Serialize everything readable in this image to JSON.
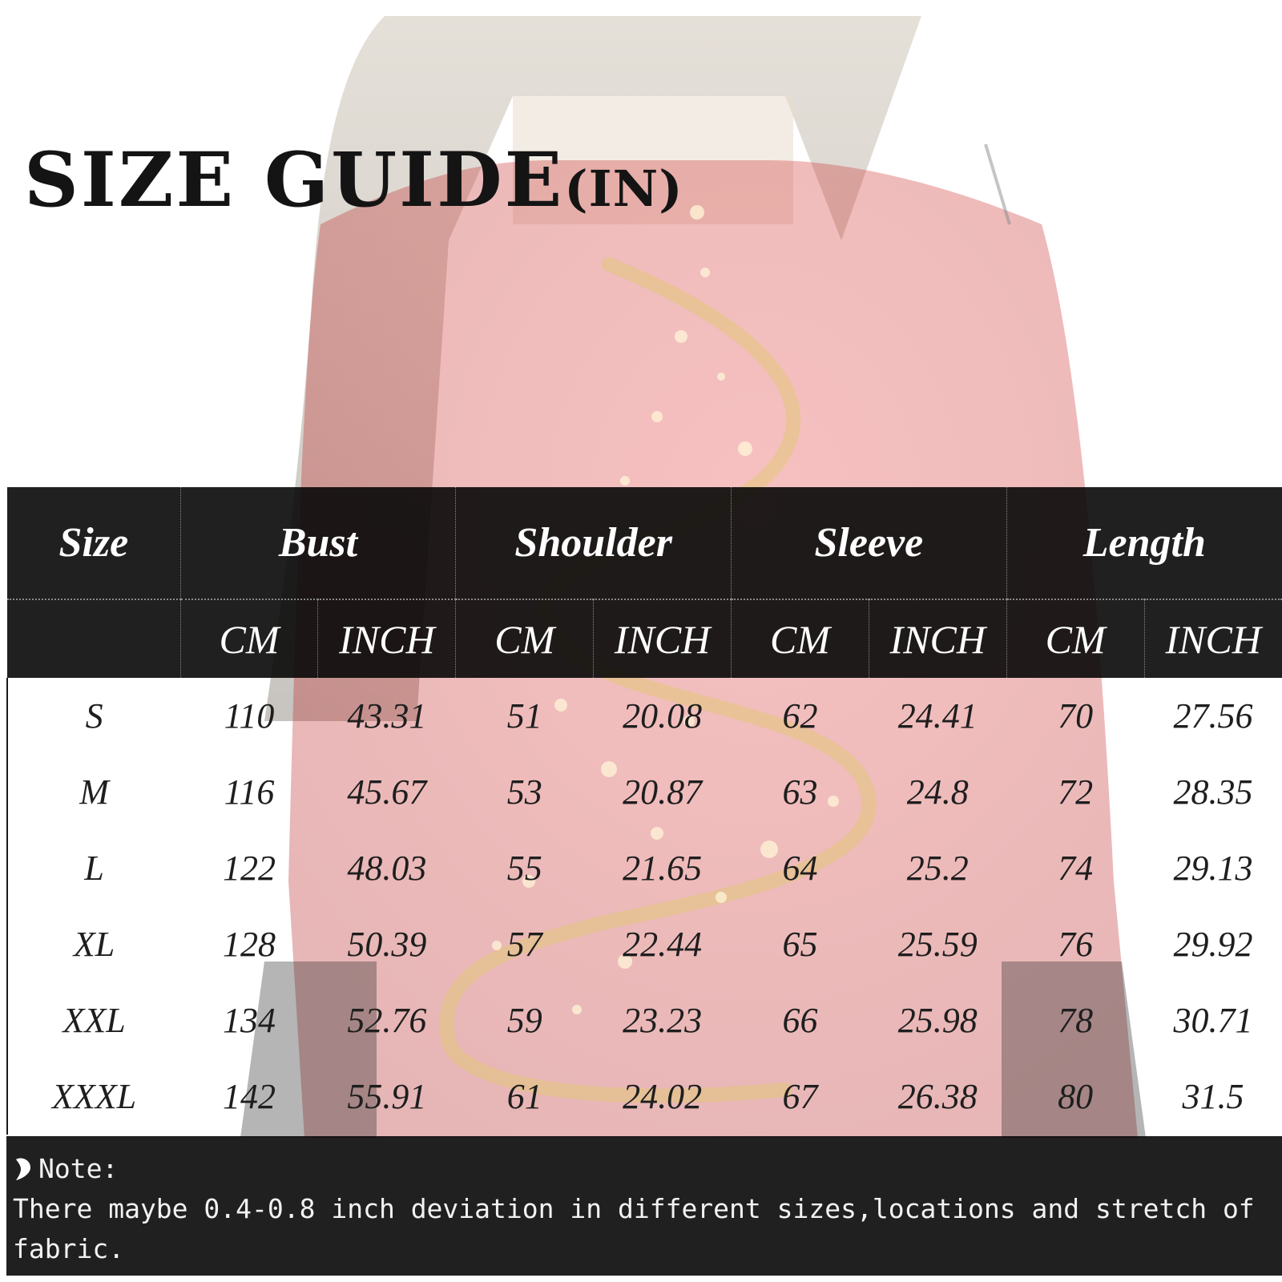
{
  "title": {
    "main": "SIZE GUIDE",
    "unit": "(IN)"
  },
  "table": {
    "groups": [
      "Size",
      "Bust",
      "Shoulder",
      "Sleeve",
      "Length"
    ],
    "units": [
      "",
      "CM",
      "INCH",
      "CM",
      "INCH",
      "CM",
      "INCH",
      "CM",
      "INCH"
    ],
    "rows": [
      [
        "S",
        "110",
        "43.31",
        "51",
        "20.08",
        "62",
        "24.41",
        "70",
        "27.56"
      ],
      [
        "M",
        "116",
        "45.67",
        "53",
        "20.87",
        "63",
        "24.8",
        "72",
        "28.35"
      ],
      [
        "L",
        "122",
        "48.03",
        "55",
        "21.65",
        "64",
        "25.2",
        "74",
        "29.13"
      ],
      [
        "XL",
        "128",
        "50.39",
        "57",
        "22.44",
        "65",
        "25.59",
        "76",
        "29.92"
      ],
      [
        "XXL",
        "134",
        "52.76",
        "59",
        "23.23",
        "66",
        "25.98",
        "78",
        "30.71"
      ],
      [
        "XXXL",
        "142",
        "55.91",
        "61",
        "24.02",
        "67",
        "26.38",
        "80",
        "31.5"
      ]
    ]
  },
  "note": {
    "label": "Note:",
    "text": "There maybe 0.4-0.8 inch deviation in different sizes,locations and stretch of fabric."
  },
  "colors": {
    "header_bg": "#080808",
    "text_dark": "#141414",
    "sweater_red": "#d62a2a",
    "gold": "#e2c77a"
  },
  "icons": {
    "note_bullet": "heart-bullet-icon"
  }
}
